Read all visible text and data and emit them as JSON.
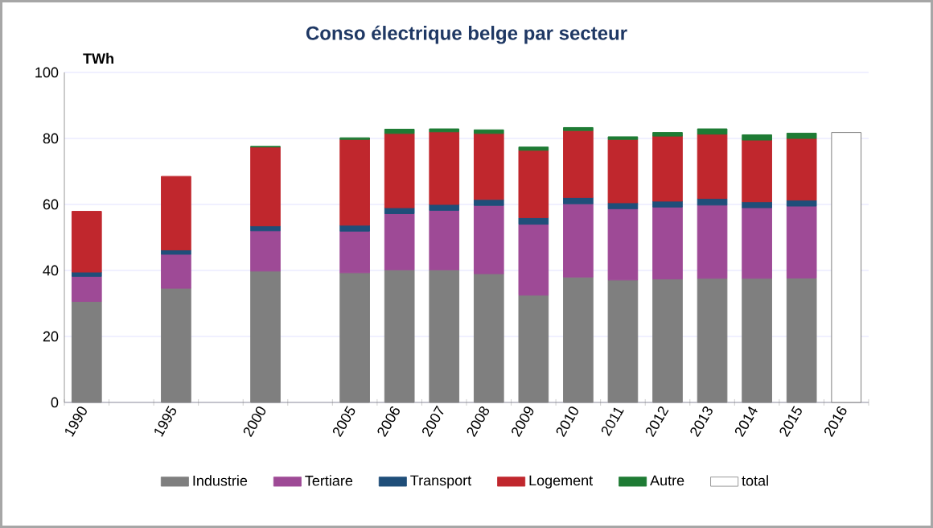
{
  "chart_data": {
    "type": "bar",
    "stacked": true,
    "title": "Conso électrique belge par secteur",
    "ylabel": "TWh",
    "categories": [
      "1990",
      null,
      "1995",
      null,
      "2000",
      null,
      "2005",
      "2006",
      "2007",
      "2008",
      "2009",
      "2010",
      "2011",
      "2012",
      "2013",
      "2014",
      "2015",
      "2016"
    ],
    "series": [
      {
        "name": "Industrie",
        "color": "#7f7f7f",
        "values": [
          30.6,
          null,
          34.6,
          null,
          39.8,
          null,
          39.3,
          40.2,
          40.2,
          39.0,
          32.5,
          38.0,
          37.1,
          37.4,
          37.6,
          37.6,
          37.7,
          null
        ]
      },
      {
        "name": "Tertiare",
        "color": "#9e4a96",
        "values": [
          7.6,
          null,
          10.3,
          null,
          12.2,
          null,
          12.6,
          17.0,
          18.0,
          20.7,
          21.5,
          22.2,
          21.6,
          21.8,
          22.2,
          21.4,
          21.8,
          null
        ]
      },
      {
        "name": "Transport",
        "color": "#1f4e79",
        "values": [
          1.3,
          null,
          1.3,
          null,
          1.5,
          null,
          1.8,
          1.8,
          1.8,
          1.8,
          2.0,
          1.9,
          1.8,
          1.8,
          2.0,
          1.8,
          1.8,
          null
        ]
      },
      {
        "name": "Logement",
        "color": "#c0272d",
        "values": [
          18.4,
          null,
          22.3,
          null,
          23.9,
          null,
          26.0,
          22.5,
          22.0,
          20.0,
          20.4,
          20.3,
          19.2,
          19.7,
          19.5,
          18.7,
          18.7,
          null
        ]
      },
      {
        "name": "Autre",
        "color": "#1e7b34",
        "values": [
          null,
          null,
          null,
          null,
          0.2,
          null,
          0.5,
          1.3,
          0.9,
          1.1,
          1.0,
          0.9,
          0.8,
          1.1,
          1.6,
          1.6,
          1.6,
          null
        ]
      },
      {
        "name": "total",
        "color": "#ffffff",
        "values": [
          null,
          null,
          null,
          null,
          null,
          null,
          null,
          null,
          null,
          null,
          null,
          null,
          null,
          null,
          null,
          null,
          null,
          81.8
        ]
      }
    ],
    "ylim": [
      0,
      100
    ],
    "yticks": [
      0,
      20,
      40,
      60,
      80,
      100
    ],
    "grid": "y",
    "legend": "bottom"
  }
}
